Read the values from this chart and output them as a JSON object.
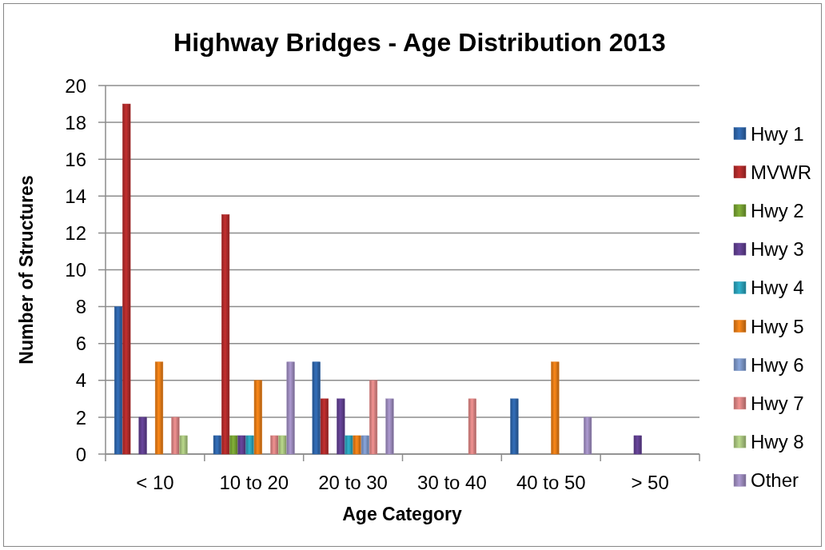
{
  "chart_data": {
    "type": "bar",
    "title": "Highway Bridges - Age Distribution 2013",
    "xlabel": "Age Category",
    "ylabel": "Number of Structures",
    "categories": [
      "< 10",
      "10 to 20",
      "20 to 30",
      "30 to 40",
      "40 to 50",
      "> 50"
    ],
    "series": [
      {
        "name": "Hwy 1",
        "color": "#2e64a8",
        "values": [
          8,
          1,
          5,
          null,
          3,
          null
        ]
      },
      {
        "name": "MVWR",
        "color": "#b02a2a",
        "values": [
          19,
          13,
          3,
          null,
          null,
          null
        ]
      },
      {
        "name": "Hwy 2",
        "color": "#76a032",
        "values": [
          null,
          1,
          null,
          null,
          null,
          null
        ]
      },
      {
        "name": "Hwy 3",
        "color": "#5f3f8e",
        "values": [
          2,
          1,
          3,
          null,
          null,
          1
        ]
      },
      {
        "name": "Hwy 4",
        "color": "#2aa0b8",
        "values": [
          null,
          1,
          1,
          null,
          null,
          null
        ]
      },
      {
        "name": "Hwy 5",
        "color": "#e27a16",
        "values": [
          5,
          4,
          1,
          null,
          5,
          null
        ]
      },
      {
        "name": "Hwy 6",
        "color": "#7b95c6",
        "values": [
          null,
          null,
          1,
          null,
          null,
          null
        ]
      },
      {
        "name": "Hwy 7",
        "color": "#d98382",
        "values": [
          2,
          1,
          4,
          3,
          null,
          null
        ]
      },
      {
        "name": "Hwy 8",
        "color": "#a8c47e",
        "values": [
          1,
          1,
          null,
          null,
          null,
          null
        ]
      },
      {
        "name": "Other",
        "color": "#9c8bbd",
        "values": [
          null,
          5,
          3,
          null,
          2,
          null
        ]
      }
    ],
    "ylim": [
      0,
      20
    ],
    "yticks": [
      0,
      2,
      4,
      6,
      8,
      10,
      12,
      14,
      16,
      18,
      20
    ],
    "grid": "y",
    "legend": "right"
  }
}
